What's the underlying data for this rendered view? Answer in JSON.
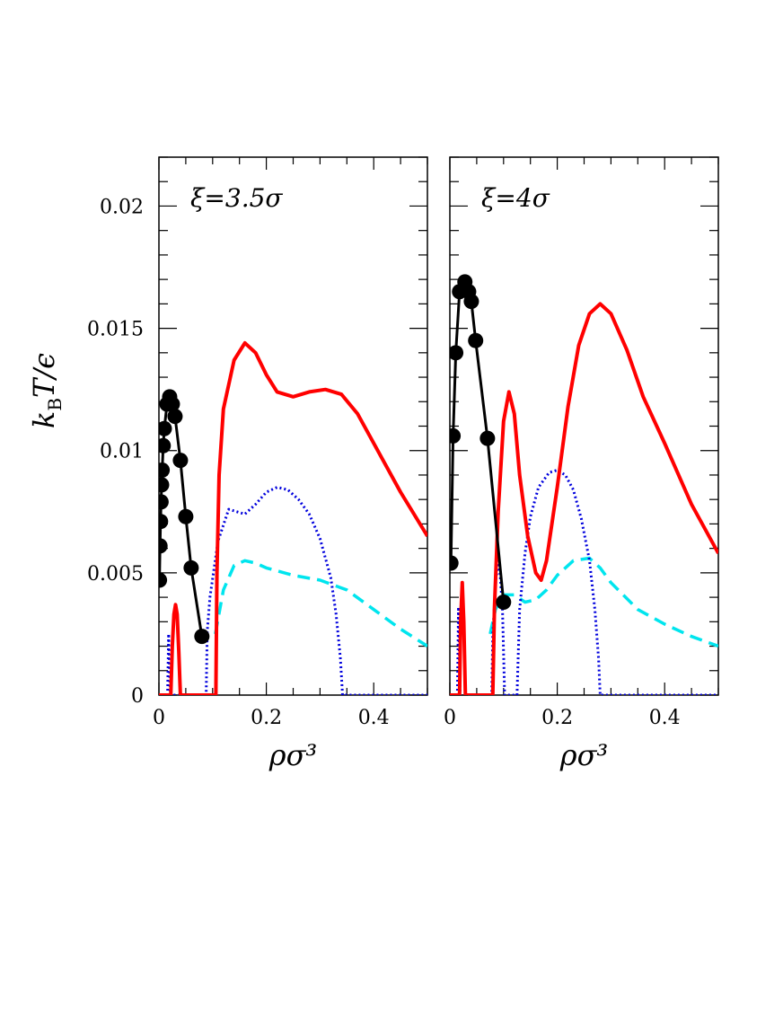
{
  "colors": {
    "solid": "#ff0000",
    "dotted": "#0000dd",
    "dashed": "#00e5ee",
    "points": "#000000"
  },
  "chart_data": [
    {
      "type": "line",
      "annotation": "ξ=3.5σ",
      "xlabel": "ρσ³",
      "ylabel": "k_BT/ϵ",
      "xlim": [
        0,
        0.5
      ],
      "ylim": [
        0,
        0.022
      ],
      "xticks": [
        0,
        0.2,
        0.4
      ],
      "xtick_labels": [
        "0",
        "0.2",
        "0.4"
      ],
      "yticks": [
        0,
        0.005,
        0.01,
        0.015,
        0.02
      ],
      "ytick_labels": [
        "0",
        "0.005",
        "0.01",
        "0.015",
        "0.02"
      ],
      "grid": false,
      "legend": "none",
      "series": [
        {
          "style": "solid",
          "points": [
            [
              0,
              0
            ],
            [
              0.022,
              0
            ],
            [
              0.025,
              0.002
            ],
            [
              0.028,
              0.0033
            ],
            [
              0.031,
              0.0037
            ],
            [
              0.034,
              0.0033
            ],
            [
              0.037,
              0.0018
            ],
            [
              0.04,
              0
            ],
            [
              0.106,
              0
            ],
            [
              0.108,
              0.005
            ],
            [
              0.112,
              0.009
            ],
            [
              0.12,
              0.0117
            ],
            [
              0.14,
              0.0137
            ],
            [
              0.16,
              0.0144
            ],
            [
              0.18,
              0.014
            ],
            [
              0.2,
              0.0131
            ],
            [
              0.22,
              0.0124
            ],
            [
              0.25,
              0.0122
            ],
            [
              0.28,
              0.0124
            ],
            [
              0.31,
              0.0125
            ],
            [
              0.34,
              0.0123
            ],
            [
              0.37,
              0.0115
            ],
            [
              0.4,
              0.0103
            ],
            [
              0.45,
              0.0083
            ],
            [
              0.5,
              0.0065
            ]
          ]
        },
        {
          "style": "dotted",
          "points": [
            [
              0.016,
              0
            ],
            [
              0.018,
              0.0025
            ],
            [
              0.021,
              0
            ],
            [
              0.088,
              0
            ],
            [
              0.09,
              0.0026
            ],
            [
              0.095,
              0.004
            ],
            [
              0.11,
              0.0063
            ],
            [
              0.13,
              0.0076
            ],
            [
              0.145,
              0.0075
            ],
            [
              0.16,
              0.0074
            ],
            [
              0.18,
              0.0078
            ],
            [
              0.2,
              0.0083
            ],
            [
              0.22,
              0.0085
            ],
            [
              0.24,
              0.0084
            ],
            [
              0.26,
              0.008
            ],
            [
              0.28,
              0.0074
            ],
            [
              0.3,
              0.0064
            ],
            [
              0.32,
              0.0048
            ],
            [
              0.33,
              0.0033
            ],
            [
              0.338,
              0.0015
            ],
            [
              0.342,
              0
            ],
            [
              0.5,
              0
            ]
          ]
        },
        {
          "style": "dashed",
          "points": [
            [
              0.105,
              0.0025
            ],
            [
              0.12,
              0.0043
            ],
            [
              0.14,
              0.0053
            ],
            [
              0.16,
              0.0055
            ],
            [
              0.18,
              0.0054
            ],
            [
              0.2,
              0.0052
            ],
            [
              0.25,
              0.0049
            ],
            [
              0.3,
              0.0047
            ],
            [
              0.35,
              0.0043
            ],
            [
              0.4,
              0.0035
            ],
            [
              0.45,
              0.0027
            ],
            [
              0.5,
              0.002
            ]
          ]
        },
        {
          "style": "points",
          "points": [
            [
              0.001,
              0.0047
            ],
            [
              0.002,
              0.0061
            ],
            [
              0.003,
              0.0071
            ],
            [
              0.004,
              0.0079
            ],
            [
              0.005,
              0.0086
            ],
            [
              0.006,
              0.0092
            ],
            [
              0.008,
              0.0102
            ],
            [
              0.01,
              0.0109
            ],
            [
              0.015,
              0.0119
            ],
            [
              0.02,
              0.0122
            ],
            [
              0.025,
              0.0119
            ],
            [
              0.03,
              0.0114
            ],
            [
              0.04,
              0.0096
            ],
            [
              0.05,
              0.0073
            ],
            [
              0.06,
              0.0052
            ],
            [
              0.08,
              0.0024
            ]
          ]
        }
      ]
    },
    {
      "type": "line",
      "annotation": "ξ=4σ",
      "xlabel": "ρσ³",
      "xlim": [
        0,
        0.5
      ],
      "ylim": [
        0,
        0.022
      ],
      "xticks": [
        0,
        0.2,
        0.4
      ],
      "xtick_labels": [
        "0",
        "0.2",
        "0.4"
      ],
      "grid": false,
      "legend": "none",
      "series": [
        {
          "style": "solid",
          "points": [
            [
              0,
              0
            ],
            [
              0.018,
              0
            ],
            [
              0.02,
              0.003
            ],
            [
              0.023,
              0.0046
            ],
            [
              0.026,
              0.003
            ],
            [
              0.029,
              0
            ],
            [
              0.08,
              0
            ],
            [
              0.083,
              0.0035
            ],
            [
              0.09,
              0.0075
            ],
            [
              0.1,
              0.0112
            ],
            [
              0.11,
              0.0124
            ],
            [
              0.12,
              0.0115
            ],
            [
              0.13,
              0.009
            ],
            [
              0.145,
              0.0065
            ],
            [
              0.16,
              0.005
            ],
            [
              0.17,
              0.0047
            ],
            [
              0.18,
              0.0055
            ],
            [
              0.2,
              0.0085
            ],
            [
              0.22,
              0.0118
            ],
            [
              0.24,
              0.0143
            ],
            [
              0.26,
              0.0156
            ],
            [
              0.28,
              0.016
            ],
            [
              0.3,
              0.0156
            ],
            [
              0.33,
              0.0141
            ],
            [
              0.36,
              0.0122
            ],
            [
              0.4,
              0.0103
            ],
            [
              0.45,
              0.0078
            ],
            [
              0.5,
              0.0058
            ]
          ]
        },
        {
          "style": "dotted",
          "points": [
            [
              0.014,
              0
            ],
            [
              0.016,
              0.0036
            ],
            [
              0.019,
              0
            ],
            [
              0.078,
              0
            ],
            [
              0.08,
              0.0025
            ],
            [
              0.086,
              0.0048
            ],
            [
              0.092,
              0.0055
            ],
            [
              0.098,
              0.0035
            ],
            [
              0.102,
              0
            ],
            [
              0.125,
              0
            ],
            [
              0.13,
              0.0035
            ],
            [
              0.14,
              0.0058
            ],
            [
              0.15,
              0.0073
            ],
            [
              0.165,
              0.0085
            ],
            [
              0.185,
              0.0091
            ],
            [
              0.2,
              0.0092
            ],
            [
              0.215,
              0.009
            ],
            [
              0.23,
              0.0084
            ],
            [
              0.245,
              0.0072
            ],
            [
              0.26,
              0.0055
            ],
            [
              0.27,
              0.0035
            ],
            [
              0.277,
              0.0015
            ],
            [
              0.28,
              0
            ],
            [
              0.5,
              0
            ]
          ]
        },
        {
          "style": "dashed",
          "points": [
            [
              0.075,
              0.0025
            ],
            [
              0.085,
              0.0035
            ],
            [
              0.1,
              0.0041
            ],
            [
              0.12,
              0.0041
            ],
            [
              0.14,
              0.0038
            ],
            [
              0.16,
              0.0039
            ],
            [
              0.18,
              0.0043
            ],
            [
              0.2,
              0.0049
            ],
            [
              0.23,
              0.0055
            ],
            [
              0.26,
              0.0056
            ],
            [
              0.28,
              0.0052
            ],
            [
              0.3,
              0.0046
            ],
            [
              0.35,
              0.0035
            ],
            [
              0.4,
              0.0029
            ],
            [
              0.45,
              0.0024
            ],
            [
              0.5,
              0.002
            ]
          ]
        },
        {
          "style": "points",
          "points": [
            [
              0.002,
              0.0054
            ],
            [
              0.006,
              0.0106
            ],
            [
              0.011,
              0.014
            ],
            [
              0.018,
              0.0165
            ],
            [
              0.028,
              0.0169
            ],
            [
              0.035,
              0.0165
            ],
            [
              0.04,
              0.0161
            ],
            [
              0.048,
              0.0145
            ],
            [
              0.07,
              0.0105
            ],
            [
              0.1,
              0.0038
            ]
          ]
        }
      ]
    }
  ]
}
